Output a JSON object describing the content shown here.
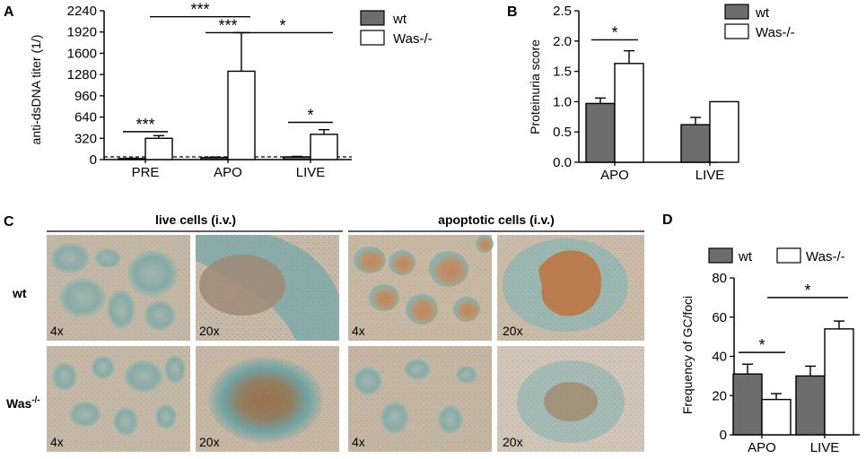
{
  "legend_labels": [
    "wt",
    "Was-/-"
  ],
  "colors": {
    "wt": "#6d6d6d",
    "was": "#ffffff",
    "stroke": "#000000"
  },
  "panels": {
    "A": "A",
    "B": "B",
    "C": "C",
    "D": "D"
  },
  "chart_data": [
    {
      "panel": "A",
      "type": "bar",
      "categories": [
        "PRE",
        "APO",
        "LIVE"
      ],
      "ylabel": "anti-dsDNA titer (1/)",
      "ylim": [
        0,
        2240
      ],
      "yticks": [
        0,
        320,
        640,
        960,
        1280,
        1600,
        1920,
        2240
      ],
      "dashed_baseline": 40,
      "series": [
        {
          "name": "wt",
          "values": [
            15,
            30,
            40
          ],
          "errors": [
            5,
            8,
            8
          ]
        },
        {
          "name": "Was-/-",
          "values": [
            320,
            1330,
            380
          ],
          "errors": [
            40,
            580,
            70
          ]
        }
      ],
      "significance": [
        {
          "label": "***",
          "from": [
            0,
            0
          ],
          "to": [
            0,
            1
          ],
          "y": 420
        },
        {
          "label": "***",
          "from": [
            0,
            1
          ],
          "to": [
            1,
            1
          ],
          "y": 2150
        },
        {
          "label": "***",
          "from": [
            1,
            0
          ],
          "to": [
            1,
            1
          ],
          "y": 1910
        },
        {
          "label": "*",
          "from": [
            1,
            1
          ],
          "to": [
            2,
            1
          ],
          "y": 1910
        },
        {
          "label": "*",
          "from": [
            2,
            0
          ],
          "to": [
            2,
            1
          ],
          "y": 560
        }
      ]
    },
    {
      "panel": "B",
      "type": "bar",
      "categories": [
        "APO",
        "LIVE"
      ],
      "ylabel": "Proteinuria score",
      "ylim": [
        0,
        2.5
      ],
      "yticks": [
        "0.0",
        "0.5",
        "1.0",
        "1.5",
        "2.0",
        "2.5"
      ],
      "series": [
        {
          "name": "wt",
          "values": [
            0.97,
            0.62
          ],
          "errors": [
            0.09,
            0.12
          ]
        },
        {
          "name": "Was-/-",
          "values": [
            1.63,
            1.0
          ],
          "errors": [
            0.21,
            0.0
          ]
        }
      ],
      "significance": [
        {
          "label": "*",
          "from": [
            0,
            0
          ],
          "to": [
            0,
            1
          ],
          "y": 2.02
        }
      ]
    },
    {
      "panel": "D",
      "type": "bar",
      "categories": [
        "APO",
        "LIVE"
      ],
      "ylabel": "Frequency of GC/foci",
      "ylim": [
        0,
        80
      ],
      "yticks": [
        0,
        20,
        40,
        60,
        80
      ],
      "series": [
        {
          "name": "wt",
          "values": [
            31,
            30
          ],
          "errors": [
            5,
            5
          ]
        },
        {
          "name": "Was-/-",
          "values": [
            18,
            54
          ],
          "errors": [
            3,
            4
          ]
        }
      ],
      "significance": [
        {
          "label": "*",
          "from": [
            0,
            0
          ],
          "to": [
            0,
            1
          ],
          "y": 42
        },
        {
          "label": "*",
          "from": [
            0,
            1
          ],
          "to": [
            1,
            1
          ],
          "y": 70
        }
      ]
    }
  ],
  "histology": {
    "group_headers": [
      "live cells (i.v.)",
      "apoptotic cells (i.v.)"
    ],
    "row_labels": [
      "wt",
      "Was",
      "-/-"
    ],
    "magnifications": [
      "4x",
      "20x",
      "4x",
      "20x"
    ]
  }
}
